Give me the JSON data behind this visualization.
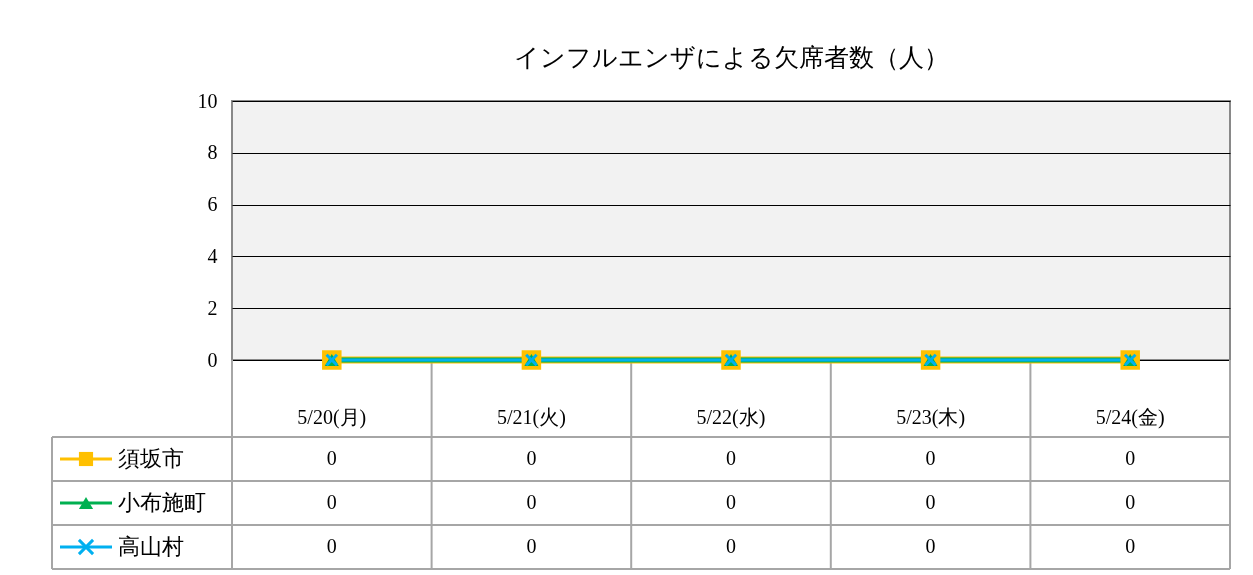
{
  "chart_data": {
    "type": "line",
    "title": "インフルエンザによる欠席者数（人）",
    "categories": [
      "5/20(月)",
      "5/21(火)",
      "5/22(水)",
      "5/23(木)",
      "5/24(金)"
    ],
    "series": [
      {
        "name": "須坂市",
        "color": "#ffc000",
        "marker": "square",
        "values": [
          0,
          0,
          0,
          0,
          0
        ]
      },
      {
        "name": "小布施町",
        "color": "#00b050",
        "marker": "triangle",
        "values": [
          0,
          0,
          0,
          0,
          0
        ]
      },
      {
        "name": "高山村",
        "color": "#00b0f0",
        "marker": "cross",
        "values": [
          0,
          0,
          0,
          0,
          0
        ]
      }
    ],
    "ylim": [
      0,
      10
    ],
    "yticks": [
      0,
      2,
      4,
      6,
      8,
      10
    ],
    "grid": "y",
    "legend": "bottom left",
    "data_labels": true
  }
}
